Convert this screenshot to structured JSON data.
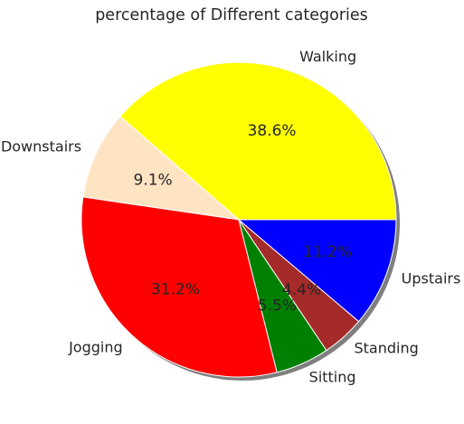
{
  "chart_data": {
    "type": "pie",
    "title": "percentage of Different categories",
    "start_angle_deg": 0,
    "counterclockwise": true,
    "shadow": true,
    "slices": [
      {
        "label": "Walking",
        "value": 38.6,
        "pct_text": "38.6%",
        "color": "#ffff00"
      },
      {
        "label": "Downstairs",
        "value": 9.1,
        "pct_text": "9.1%",
        "color": "#ffe4c4"
      },
      {
        "label": "Jogging",
        "value": 31.2,
        "pct_text": "31.2%",
        "color": "#ff0000"
      },
      {
        "label": "Sitting",
        "value": 5.5,
        "pct_text": "5.5%",
        "color": "#008000"
      },
      {
        "label": "Standing",
        "value": 4.4,
        "pct_text": "4.4%",
        "color": "#a52a2a"
      },
      {
        "label": "Upstairs",
        "value": 11.2,
        "pct_text": "11.2%",
        "color": "#0000ff"
      }
    ]
  }
}
